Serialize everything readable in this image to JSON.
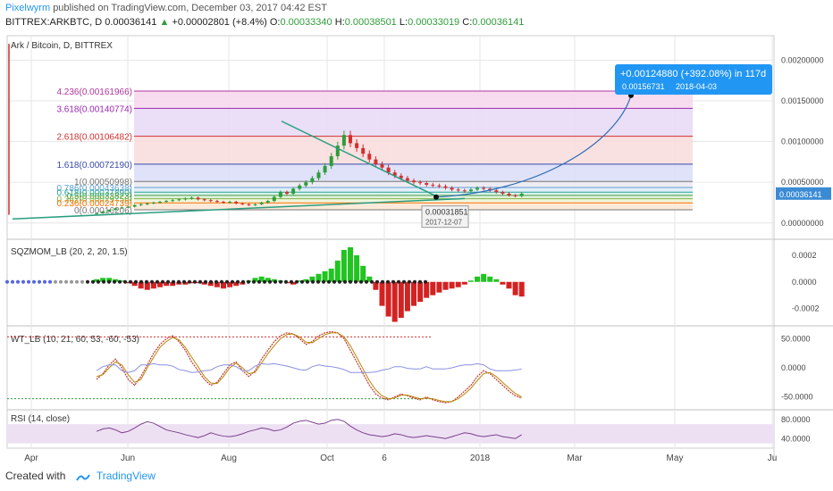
{
  "header": {
    "username": "Pixelwyrm",
    "published_text": "published on TradingView.com, December 03, 2017 04:42 EST",
    "symbol_line": "BITTREX:ARKBTC, D",
    "last": "0.00036141",
    "change": "+0.00002801 (+8.4%)",
    "o_label": "O:",
    "o": "0.00033340",
    "h_label": "H:",
    "h": "0.00038501",
    "l_label": "L:",
    "l": "0.00033019",
    "c_label": "C:",
    "c": "0.00036141"
  },
  "footer": {
    "created_with": "Created with",
    "brand": "TradingView"
  },
  "colors": {
    "up": "#2e9d3a",
    "down": "#d32f2f",
    "blue": "#2196f3",
    "rsi": "#7b3f8c",
    "grid": "#e6e6e6",
    "price_tag": "#3b8bd4"
  },
  "chart_data": [
    {
      "type": "candlestick",
      "title": "Ark / Bitcoin, D, BITTREX",
      "x_tick_labels": [
        "Apr",
        "Jun",
        "Aug",
        "Oct",
        "6",
        "2018",
        "Mar",
        "May",
        "Ju"
      ],
      "y_tick_labels": [
        "0.00200000",
        "0.00150000",
        "0.00100000",
        "0.00050000",
        "0.00000000"
      ],
      "ylim": [
        -0.0002,
        0.0023
      ],
      "last_price_label": "0.00036141",
      "fib_levels": [
        {
          "label": "4.236(0.00161966)",
          "value": 0.00161966,
          "color": "#b0359e",
          "fill": "#f6d8ee"
        },
        {
          "label": "3.618(0.00140774)",
          "value": 0.00140774,
          "color": "#9c27b0",
          "fill": "#e8dcf5"
        },
        {
          "label": "2.618(0.00106482)",
          "value": 0.00106482,
          "color": "#d32f2f",
          "fill": "#f8dede"
        },
        {
          "label": "1.618(0.00072190)",
          "value": 0.0007219,
          "color": "#3949ab",
          "fill": "#dcdff7"
        },
        {
          "label": "1(0.00050998)",
          "value": 0.00050998,
          "color": "#777777",
          "fill": "#eceaf2"
        },
        {
          "label": "0.786(0.00043638)",
          "value": 0.00043638,
          "color": "#5e9ed6",
          "fill": "#e0ecf7"
        },
        {
          "label": "0.618(0.00037890)",
          "value": 0.0003789,
          "color": "#26a69a",
          "fill": "#d9efe9"
        },
        {
          "label": "0.5(0.00033823)",
          "value": 0.00033823,
          "color": "#43a047",
          "fill": "#dff0da"
        },
        {
          "label": "0.382(0.00029756)",
          "value": 0.00029756,
          "color": "#7cb342",
          "fill": "#eef5dc"
        },
        {
          "label": "0.236(0.00024739)",
          "value": 0.00024739,
          "color": "#ff6f00",
          "fill": "#fbe8d6"
        },
        {
          "label": "0(0.00016206)",
          "value": 0.00016206,
          "color": "#777777",
          "fill": "#f3e6e6"
        }
      ],
      "candles": [
        0.00012,
        0.00014,
        0.00016,
        0.00018,
        0.00019,
        0.0002,
        0.00022,
        0.00023,
        0.00024,
        0.00025,
        0.00026,
        0.00027,
        0.00028,
        0.00029,
        0.0003,
        0.00031,
        0.00029,
        0.00028,
        0.00027,
        0.00026,
        0.00025,
        0.00026,
        0.00024,
        0.00023,
        0.00022,
        0.00023,
        0.00025,
        0.00027,
        0.00032,
        0.00038,
        0.00036,
        0.00042,
        0.00046,
        0.0005,
        0.00055,
        0.00062,
        0.0007,
        0.00082,
        0.00095,
        0.00108,
        0.00098,
        0.00092,
        0.00085,
        0.00078,
        0.00072,
        0.00068,
        0.00062,
        0.00058,
        0.00055,
        0.00052,
        0.0005,
        0.00049,
        0.00047,
        0.00046,
        0.00045,
        0.00043,
        0.00041,
        0.0004,
        0.00039,
        0.00041,
        0.00043,
        0.00042,
        0.0004,
        0.00038,
        0.00036,
        0.00034,
        0.00033,
        0.00036
      ],
      "projection": {
        "label": "+0.00124880 (+392.08%) in 117d",
        "sublabel": "0.00156731",
        "date": "2018-04-03",
        "target": 0.00156731
      },
      "anchor": {
        "value": "0.00031851",
        "date": "2017-12-07"
      }
    },
    {
      "type": "bar",
      "title": "SQZMOM_LB (20, 2, 20, 1.5)",
      "y_tick_labels": [
        "0.0002",
        "0.0000",
        "-0.0002"
      ],
      "ylim": [
        -0.00033,
        0.00032
      ],
      "values": [
        2e-05,
        3e-05,
        3e-05,
        2e-05,
        1e-05,
        -1e-05,
        -3e-05,
        -5e-05,
        -6e-05,
        -5e-05,
        -4e-05,
        -3e-05,
        -3e-05,
        -2e-05,
        -2e-05,
        -1e-05,
        -1e-05,
        -2e-05,
        -3e-05,
        -4e-05,
        -5e-05,
        -4e-05,
        -3e-05,
        -2e-05,
        1e-05,
        3e-05,
        4e-05,
        3e-05,
        2e-05,
        1e-05,
        -1e-05,
        -2e-05,
        1e-05,
        2e-05,
        4e-05,
        6e-05,
        8e-05,
        0.0001,
        0.00016,
        0.00024,
        0.00026,
        0.0002,
        0.00012,
        4e-05,
        -6e-05,
        -0.00018,
        -0.00026,
        -0.0003,
        -0.00027,
        -0.00022,
        -0.00018,
        -0.00015,
        -0.00012,
        -0.0001,
        -8e-05,
        -6e-05,
        -5e-05,
        -4e-05,
        -2e-05,
        1e-05,
        4e-05,
        6e-05,
        4e-05,
        2e-05,
        -2e-05,
        -5e-05,
        -0.0001,
        -0.00011
      ]
    },
    {
      "type": "line",
      "title": "WT_LB (10, 21, 60, 53, -60, -53)",
      "y_tick_labels": [
        "50.0000",
        "0.0000",
        "-50.0000"
      ],
      "ylim": [
        -72,
        72
      ],
      "series": [
        {
          "values": [
            -20,
            -10,
            5,
            15,
            0,
            -20,
            -30,
            -15,
            5,
            25,
            40,
            50,
            55,
            45,
            30,
            10,
            -5,
            -20,
            -30,
            -25,
            -10,
            5,
            10,
            -5,
            -15,
            -5,
            15,
            30,
            45,
            55,
            60,
            58,
            50,
            40,
            45,
            55,
            60,
            62,
            60,
            50,
            30,
            10,
            -10,
            -30,
            -45,
            -52,
            -55,
            -50,
            -45,
            -48,
            -52,
            -55,
            -50,
            -55,
            -58,
            -60,
            -58,
            -50,
            -40,
            -30,
            -15,
            -5,
            -10,
            -20,
            -30,
            -40,
            -48,
            -52
          ]
        },
        {
          "values": [
            -15,
            -12,
            0,
            10,
            5,
            -12,
            -25,
            -20,
            0,
            18,
            35,
            45,
            52,
            48,
            35,
            18,
            2,
            -15,
            -26,
            -27,
            -15,
            0,
            8,
            0,
            -10,
            -8,
            8,
            24,
            38,
            50,
            57,
            58,
            53,
            44,
            43,
            50,
            57,
            60,
            60,
            53,
            38,
            18,
            -2,
            -22,
            -38,
            -48,
            -53,
            -52,
            -47,
            -47,
            -50,
            -53,
            -52,
            -53,
            -56,
            -58,
            -58,
            -53,
            -45,
            -35,
            -22,
            -10,
            -8,
            -15,
            -25,
            -35,
            -44,
            -50
          ]
        }
      ]
    },
    {
      "type": "line",
      "title": "RSI (14, close)",
      "y_tick_labels": [
        "80.0000",
        "40.0000"
      ],
      "ylim": [
        20,
        100
      ],
      "values": [
        55,
        60,
        62,
        58,
        52,
        55,
        62,
        70,
        75,
        72,
        65,
        58,
        55,
        52,
        48,
        45,
        42,
        46,
        52,
        48,
        45,
        44,
        46,
        50,
        55,
        58,
        62,
        60,
        56,
        58,
        64,
        72,
        76,
        78,
        74,
        70,
        72,
        78,
        80,
        76,
        66,
        58,
        52,
        48,
        46,
        44,
        46,
        50,
        48,
        44,
        42,
        44,
        46,
        44,
        42,
        40,
        44,
        48,
        52,
        50,
        46,
        44,
        46,
        48,
        44,
        42,
        40,
        48
      ]
    }
  ]
}
